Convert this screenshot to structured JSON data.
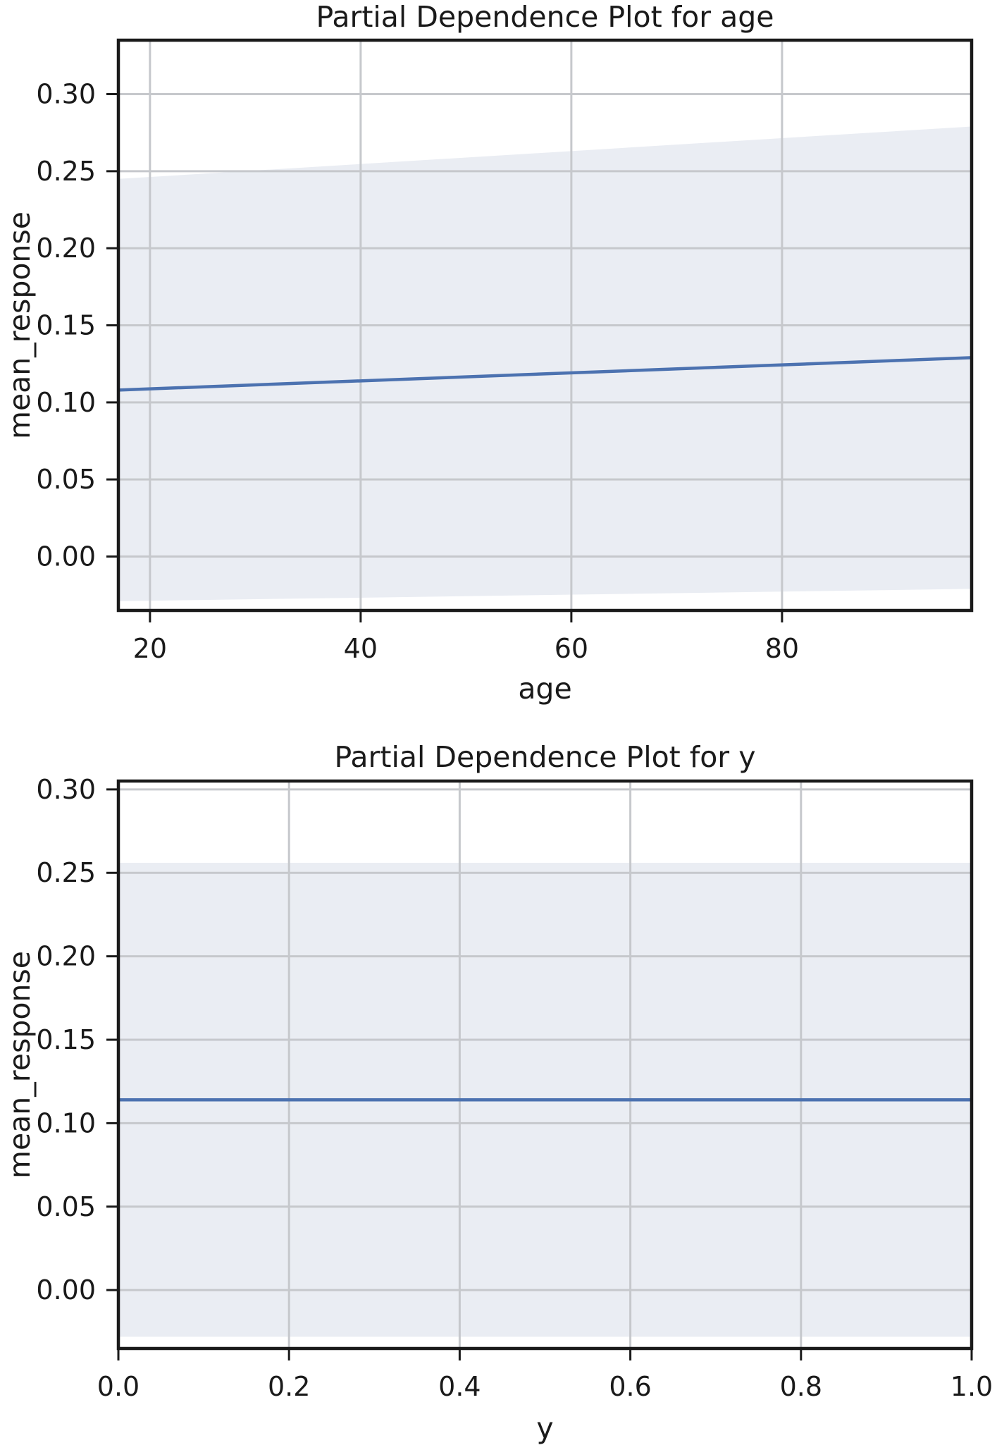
{
  "colors": {
    "line": "#4c72b0",
    "band": "#eaedf3",
    "grid": "#c6c8cc",
    "frame": "#1a1a1a",
    "text": "#1a1a1a"
  },
  "chart_data": [
    {
      "type": "line",
      "title": "Partial Dependence Plot for age",
      "xlabel": "age",
      "ylabel": "mean_response",
      "xlim": [
        17,
        98
      ],
      "ylim": [
        -0.035,
        0.335
      ],
      "x_ticks": [
        20,
        40,
        60,
        80
      ],
      "x_tick_labels": [
        "20",
        "40",
        "60",
        "80"
      ],
      "y_ticks": [
        0.0,
        0.05,
        0.1,
        0.15,
        0.2,
        0.25,
        0.3
      ],
      "y_tick_labels": [
        "0.00",
        "0.05",
        "0.10",
        "0.15",
        "0.20",
        "0.25",
        "0.30"
      ],
      "grid": true,
      "series": [
        {
          "x": [
            17,
            98
          ],
          "y": [
            0.108,
            0.129
          ],
          "lower": [
            -0.029,
            -0.021
          ],
          "upper": [
            0.245,
            0.279
          ]
        }
      ]
    },
    {
      "type": "line",
      "title": "Partial Dependence Plot for y",
      "xlabel": "y",
      "ylabel": "mean_response",
      "xlim": [
        0.0,
        1.0
      ],
      "ylim": [
        -0.035,
        0.305
      ],
      "x_ticks": [
        0.0,
        0.2,
        0.4,
        0.6,
        0.8,
        1.0
      ],
      "x_tick_labels": [
        "0.0",
        "0.2",
        "0.4",
        "0.6",
        "0.8",
        "1.0"
      ],
      "y_ticks": [
        0.0,
        0.05,
        0.1,
        0.15,
        0.2,
        0.25,
        0.3
      ],
      "y_tick_labels": [
        "0.00",
        "0.05",
        "0.10",
        "0.15",
        "0.20",
        "0.25",
        "0.30"
      ],
      "grid": true,
      "series": [
        {
          "x": [
            0.0,
            1.0
          ],
          "y": [
            0.114,
            0.114
          ],
          "lower": [
            -0.028,
            -0.028
          ],
          "upper": [
            0.256,
            0.256
          ]
        }
      ]
    }
  ]
}
